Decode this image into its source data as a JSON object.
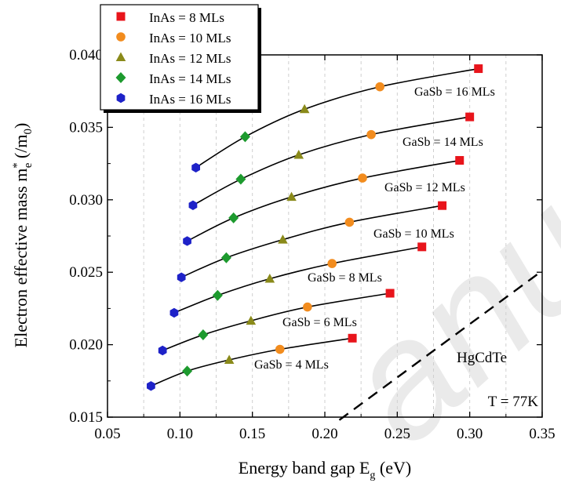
{
  "chart_data": {
    "type": "scatter",
    "xlabel": "Energy band gap",
    "xlabel_symbol": "E",
    "xlabel_subscript": "g",
    "xlabel_unit": "(eV)",
    "ylabel": "Electron effective mass m",
    "ylabel_subscript": "e",
    "ylabel_superscript": "*",
    "ylabel_unit_prefix": "(/m",
    "ylabel_unit_subscript": "0",
    "ylabel_unit_suffix": ")",
    "xlim": [
      0.05,
      0.35
    ],
    "ylim": [
      0.015,
      0.04
    ],
    "xticks": [
      0.05,
      0.1,
      0.15,
      0.2,
      0.25,
      0.3,
      0.35
    ],
    "xtick_labels": [
      "0.05",
      "0.10",
      "0.15",
      "0.20",
      "0.25",
      "0.30",
      "0.35"
    ],
    "yticks": [
      0.015,
      0.02,
      0.025,
      0.03,
      0.035,
      0.04
    ],
    "ytick_labels": [
      "0.015",
      "0.020",
      "0.025",
      "0.030",
      "0.035",
      "0.040"
    ],
    "grid": "vertical-dashed",
    "legend_position": "top-left",
    "inas_series": [
      {
        "name": "InAs = 8 MLs",
        "marker": "square",
        "color": "#e8141b"
      },
      {
        "name": "InAs = 10 MLs",
        "marker": "circle",
        "color": "#f28c1e"
      },
      {
        "name": "InAs = 12 MLs",
        "marker": "triangle",
        "color": "#8a8a1a"
      },
      {
        "name": "InAs = 14 MLs",
        "marker": "diamond",
        "color": "#1d9a2e"
      },
      {
        "name": "InAs = 16 MLs",
        "marker": "hexagon",
        "color": "#1e22c8"
      }
    ],
    "gasb_curves": [
      {
        "label": "GaSb = 4 MLs",
        "points": [
          [
            0.08,
            0.01715
          ],
          [
            0.105,
            0.01818
          ],
          [
            0.134,
            0.01895
          ],
          [
            0.169,
            0.01968
          ],
          [
            0.219,
            0.02045
          ]
        ]
      },
      {
        "label": "GaSb = 6 MLs",
        "points": [
          [
            0.088,
            0.0196
          ],
          [
            0.116,
            0.02068
          ],
          [
            0.149,
            0.02165
          ],
          [
            0.188,
            0.0226
          ],
          [
            0.245,
            0.02355
          ]
        ]
      },
      {
        "label": "GaSb = 8 MLs",
        "points": [
          [
            0.096,
            0.0222
          ],
          [
            0.126,
            0.0234
          ],
          [
            0.162,
            0.02455
          ],
          [
            0.205,
            0.0256
          ],
          [
            0.267,
            0.02675
          ]
        ]
      },
      {
        "label": "GaSb = 10 MLs",
        "points": [
          [
            0.101,
            0.02465
          ],
          [
            0.132,
            0.026
          ],
          [
            0.171,
            0.02725
          ],
          [
            0.217,
            0.02845
          ],
          [
            0.281,
            0.0296
          ]
        ]
      },
      {
        "label": "GaSb = 12 MLs",
        "points": [
          [
            0.105,
            0.02715
          ],
          [
            0.137,
            0.02875
          ],
          [
            0.177,
            0.0302
          ],
          [
            0.226,
            0.0315
          ],
          [
            0.293,
            0.03272
          ]
        ]
      },
      {
        "label": "GaSb = 14 MLs",
        "points": [
          [
            0.109,
            0.02962
          ],
          [
            0.142,
            0.03142
          ],
          [
            0.182,
            0.0331
          ],
          [
            0.232,
            0.0345
          ],
          [
            0.3,
            0.03572
          ]
        ]
      },
      {
        "label": "GaSb = 16 MLs",
        "points": [
          [
            0.111,
            0.03222
          ],
          [
            0.145,
            0.03435
          ],
          [
            0.186,
            0.03625
          ],
          [
            0.238,
            0.0378
          ],
          [
            0.306,
            0.03905
          ]
        ]
      }
    ],
    "hgcdte_line": {
      "label": "HgCdTe",
      "points": [
        [
          0.21,
          0.0148
        ],
        [
          0.35,
          0.0251
        ]
      ]
    },
    "temperature_label": "T = 77K",
    "watermark": "anusc"
  }
}
